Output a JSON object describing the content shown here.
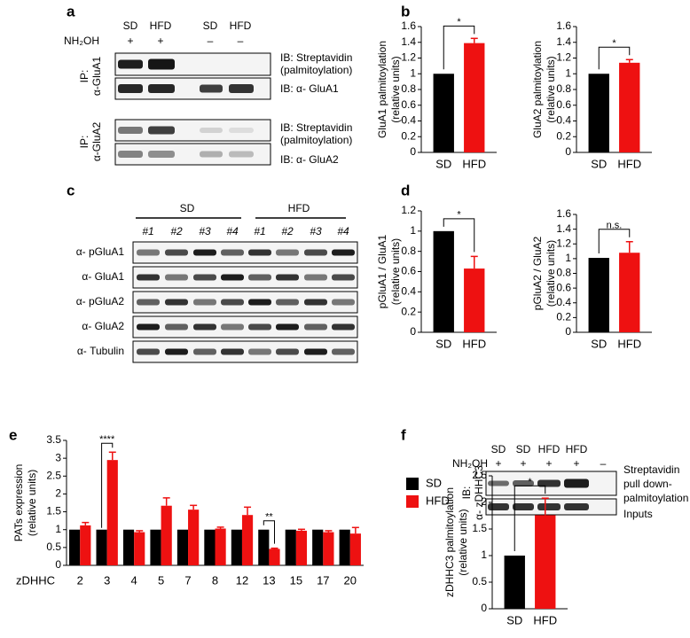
{
  "panels": [
    "a",
    "b",
    "c",
    "d",
    "e",
    "f"
  ],
  "panel_a": {
    "columns": [
      "SD",
      "HFD",
      "SD",
      "HFD"
    ],
    "treatment": "NH₂OH",
    "treatment_signs": [
      "+",
      "+",
      "–",
      "–"
    ],
    "ip_1": [
      "IP:",
      "α-GluA1"
    ],
    "ip_2": [
      "IP:",
      "α-GluA2"
    ],
    "ib_1": [
      "IB: Streptavidin",
      "(palmitoylation)"
    ],
    "ib_2": "IB: α- GluA1",
    "ib_3": [
      "IB: Streptavidin",
      "(palmitoylation)"
    ],
    "ib_4": "IB: α- GluA2"
  },
  "panel_c": {
    "groups": [
      "SD",
      "HFD"
    ],
    "lanes": [
      "#1",
      "#2",
      "#3",
      "#4",
      "#1",
      "#2",
      "#3",
      "#4"
    ],
    "rows": [
      "α- pGluA1",
      "α- GluA1",
      "α- pGluA2",
      "α- GluA2",
      "α- Tubulin"
    ]
  },
  "panel_f": {
    "columns": [
      "SD",
      "SD",
      "HFD",
      "HFD"
    ],
    "treatment": "NH₂OH",
    "treatment_signs": [
      "+",
      "+",
      "+",
      "+",
      "–"
    ],
    "ib": [
      "IB:",
      "α- zDHHC3"
    ],
    "rows": [
      [
        "Streptavidin",
        "pull down-",
        "palmitoylation"
      ],
      [
        "Inputs"
      ]
    ]
  },
  "chart_data": [
    {
      "type": "bar",
      "ylabel": [
        "GluA1 palmitoylation",
        "(relative units)"
      ],
      "categories": [
        "SD",
        "HFD"
      ],
      "values": [
        1.0,
        1.39
      ],
      "errors": [
        null,
        0.06
      ],
      "colors": [
        "#000000",
        "#ee1111"
      ],
      "ylim": [
        0,
        1.6
      ],
      "yticks": [
        0,
        0.2,
        0.4,
        0.6,
        0.8,
        1,
        1.2,
        1.4,
        1.6
      ],
      "annotations": [
        "*"
      ]
    },
    {
      "type": "bar",
      "ylabel": [
        "GluA2 palmitoylation",
        "(relative units)"
      ],
      "categories": [
        "SD",
        "HFD"
      ],
      "values": [
        1.0,
        1.14
      ],
      "errors": [
        null,
        0.04
      ],
      "colors": [
        "#000000",
        "#ee1111"
      ],
      "ylim": [
        0,
        1.6
      ],
      "yticks": [
        0,
        0.2,
        0.4,
        0.6,
        0.8,
        1,
        1.2,
        1.4,
        1.6
      ],
      "annotations": [
        "*"
      ]
    },
    {
      "type": "bar",
      "ylabel": [
        "pGluA1 / GluA1",
        "(relative units)"
      ],
      "categories": [
        "SD",
        "HFD"
      ],
      "values": [
        1.0,
        0.63
      ],
      "errors": [
        null,
        0.12
      ],
      "colors": [
        "#000000",
        "#ee1111"
      ],
      "ylim": [
        0,
        1.2
      ],
      "yticks": [
        0,
        0.2,
        0.4,
        0.6,
        0.8,
        1,
        1.2
      ],
      "annotations": [
        "*"
      ]
    },
    {
      "type": "bar",
      "ylabel": [
        "pGluA2 / GluA2",
        "(relative units)"
      ],
      "categories": [
        "SD",
        "HFD"
      ],
      "values": [
        1.01,
        1.08
      ],
      "errors": [
        null,
        0.15
      ],
      "colors": [
        "#000000",
        "#ee1111"
      ],
      "ylim": [
        0,
        1.6
      ],
      "yticks": [
        0,
        0.2,
        0.4,
        0.6,
        0.8,
        1,
        1.2,
        1.4,
        1.6
      ],
      "annotations": [
        "n.s."
      ]
    },
    {
      "type": "grouped_bar",
      "ylabel": [
        "PATs expression",
        "(relative units)"
      ],
      "xlabel": "zDHHC",
      "categories": [
        "2",
        "3",
        "4",
        "5",
        "7",
        "8",
        "12",
        "13",
        "15",
        "17",
        "20"
      ],
      "series": [
        {
          "name": "SD",
          "color": "#000000",
          "values": [
            1,
            1,
            1,
            1,
            1,
            1,
            1,
            1,
            1,
            1,
            1
          ]
        },
        {
          "name": "HFD",
          "color": "#ee1111",
          "values": [
            1.12,
            2.95,
            0.93,
            1.67,
            1.56,
            1.03,
            1.41,
            0.46,
            0.97,
            0.93,
            0.89
          ],
          "errors": [
            0.08,
            0.22,
            0.04,
            0.22,
            0.12,
            0.04,
            0.22,
            0.02,
            0.04,
            0.04,
            0.17
          ]
        }
      ],
      "ylim": [
        0,
        3.5
      ],
      "yticks": [
        0,
        0.5,
        1,
        1.5,
        2,
        2.5,
        3,
        3.5
      ],
      "legend": "right",
      "annotations": [
        "****",
        "**"
      ]
    },
    {
      "type": "bar",
      "ylabel": [
        "zDHHC3 palmitoylation",
        "(relative units)"
      ],
      "categories": [
        "SD",
        "HFD"
      ],
      "values": [
        1.0,
        1.76
      ],
      "errors": [
        null,
        0.32
      ],
      "colors": [
        "#000000",
        "#ee1111"
      ],
      "ylim": [
        0,
        2.5
      ],
      "yticks": [
        0,
        0.5,
        1,
        1.5,
        2,
        2.5
      ],
      "annotations": [
        "*"
      ]
    }
  ]
}
